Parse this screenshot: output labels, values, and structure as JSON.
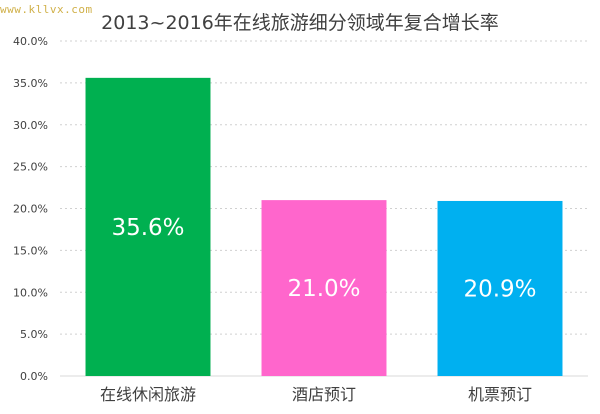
{
  "watermark": "www.kllvx.com",
  "chart_data": {
    "type": "bar",
    "title": "2013~2016年在线旅游细分领域年复合增长率",
    "categories": [
      "在线休闲旅游",
      "酒店预订",
      "机票预订"
    ],
    "values": [
      35.6,
      21.0,
      20.9
    ],
    "data_labels": [
      "35.6%",
      "21.0%",
      "20.9%"
    ],
    "colors": [
      "#00b050",
      "#ff66cc",
      "#00b0f0"
    ],
    "ylim": [
      0,
      40
    ],
    "yticks": [
      0,
      5,
      10,
      15,
      20,
      25,
      30,
      35,
      40
    ],
    "ytick_labels": [
      "0.0%",
      "5.0%",
      "10.0%",
      "15.0%",
      "20.0%",
      "25.0%",
      "30.0%",
      "35.0%",
      "40.0%"
    ],
    "xlabel": "",
    "ylabel": "",
    "grid": true,
    "legend": "none"
  }
}
